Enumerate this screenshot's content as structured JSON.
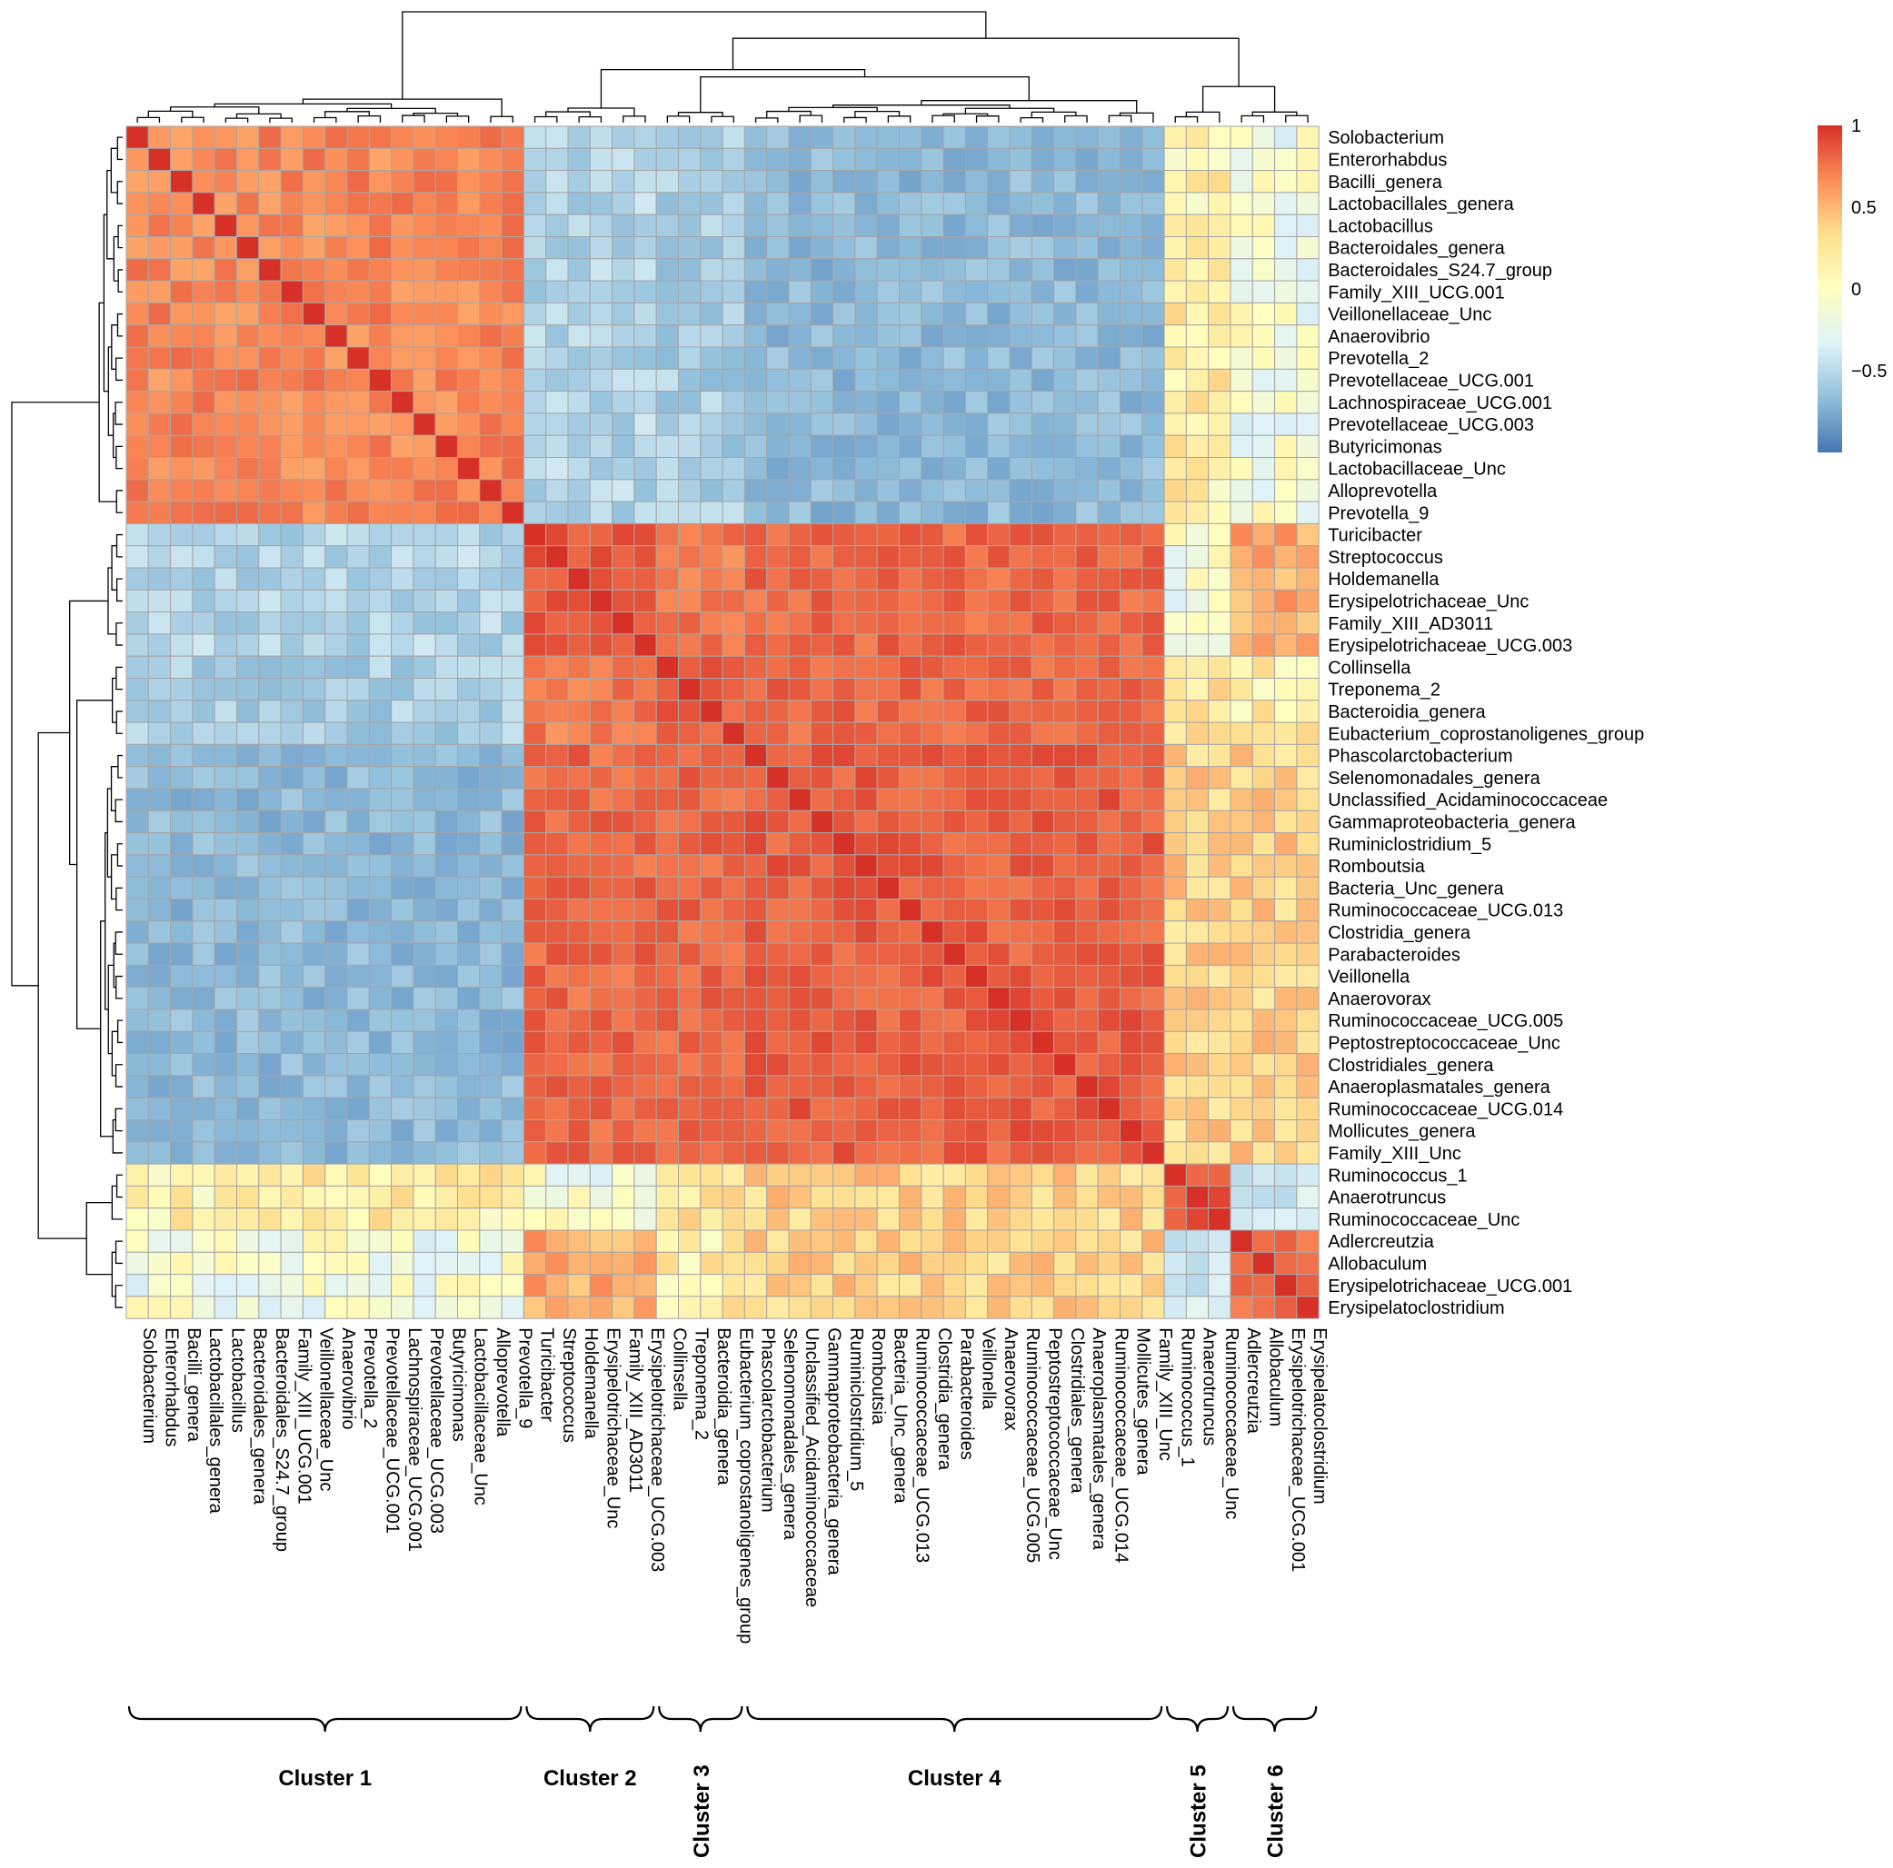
{
  "chart_data": {
    "type": "heatmap",
    "title": "",
    "labels": [
      "Solobacterium",
      "Enterorhabdus",
      "Bacilli_genera",
      "Lactobacillales_genera",
      "Lactobacillus",
      "Bacteroidales_genera",
      "Bacteroidales_S24.7_group",
      "Family_XIII_UCG.001",
      "Veillonellaceae_Unc",
      "Anaerovibrio",
      "Prevotella_2",
      "Prevotellaceae_UCG.001",
      "Lachnospiraceae_UCG.001",
      "Prevotellaceae_UCG.003",
      "Butyricimonas",
      "Lactobacillaceae_Unc",
      "Alloprevotella",
      "Prevotella_9",
      "Turicibacter",
      "Streptococcus",
      "Holdemanella",
      "Erysipelotrichaceae_Unc",
      "Family_XIII_AD3011",
      "Erysipelotrichaceae_UCG.003",
      "Collinsella",
      "Treponema_2",
      "Bacteroidia_genera",
      "Eubacterium_coprostanoligenes_group",
      "Phascolarctobacterium",
      "Selenomonadales_genera",
      "Unclassified_Acidaminococcaceae",
      "Gammaproteobacteria_genera",
      "Ruminiclostridium_5",
      "Romboutsia",
      "Bacteria_Unc_genera",
      "Ruminococcaceae_UCG.013",
      "Clostridia_genera",
      "Parabacteroides",
      "Veillonella",
      "Anaerovorax",
      "Ruminococcaceae_UCG.005",
      "Peptostreptococcaceae_Unc",
      "Clostridiales_genera",
      "Anaeroplasmatales_genera",
      "Ruminococcaceae_UCG.014",
      "Mollicutes_genera",
      "Family_XIII_Unc",
      "Ruminococcus_1",
      "Anaerotruncus",
      "Ruminococcaceae_Unc",
      "Adlercreutzia",
      "Allobaculum",
      "Erysipelotrichaceae_UCG.001",
      "Erysipelatoclostridium"
    ],
    "groups": [
      1,
      1,
      1,
      1,
      1,
      1,
      1,
      1,
      1,
      1,
      1,
      1,
      1,
      1,
      1,
      1,
      1,
      1,
      2,
      2,
      2,
      2,
      2,
      2,
      3,
      3,
      3,
      3,
      4,
      4,
      4,
      4,
      4,
      4,
      4,
      4,
      4,
      4,
      4,
      4,
      4,
      4,
      4,
      4,
      4,
      4,
      4,
      5,
      5,
      5,
      6,
      6,
      6,
      6
    ],
    "cluster_labels": [
      "Cluster 1",
      "Cluster 2",
      "Cluster 3",
      "Cluster 4",
      "Cluster 5",
      "Cluster 6"
    ],
    "cluster_membership": {
      "Cluster 1": "Solobacterium … Prevotella_9",
      "Cluster 2": "Turicibacter … Erysipelotrichaceae_UCG.003",
      "Cluster 3": "Collinsella … Eubacterium_coprostanoligenes_group",
      "Cluster 4": "Phascolarctobacterium … Family_XIII_Unc",
      "Cluster 5": "Ruminococcus_1 … Ruminococcaceae_Unc",
      "Cluster 6": "Adlercreutzia … Erysipelatoclostridium"
    },
    "block_correlation_means": [
      [
        0.55,
        -0.35,
        -0.4,
        -0.55,
        0.1,
        -0.05
      ],
      [
        -0.35,
        0.8,
        0.6,
        0.7,
        -0.05,
        0.4
      ],
      [
        -0.4,
        0.6,
        0.75,
        0.7,
        0.15,
        0.1
      ],
      [
        -0.55,
        0.7,
        0.7,
        0.75,
        0.25,
        0.25
      ],
      [
        0.1,
        -0.05,
        0.15,
        0.25,
        0.75,
        -0.2
      ],
      [
        -0.05,
        0.4,
        0.1,
        0.25,
        -0.2,
        0.65
      ]
    ],
    "diagonal": 1,
    "value_range": [
      -1,
      1
    ],
    "legend": {
      "position": "top-right",
      "ticks": [
        1,
        0.5,
        0,
        -0.5
      ],
      "tick_labels": [
        "1",
        "0.5",
        "0",
        "−0.5"
      ],
      "colors": [
        "#d73027",
        "#fc8d59",
        "#fee090",
        "#ffffbf",
        "#e0f3f8",
        "#91bfdb",
        "#4575b4"
      ]
    }
  }
}
